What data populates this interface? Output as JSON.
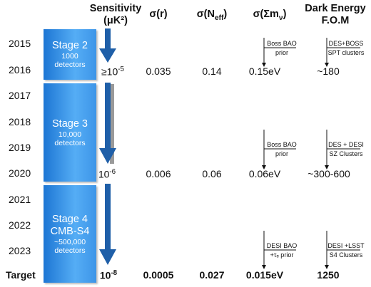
{
  "headers": {
    "sensitivity": "Sensitivity",
    "sensitivity_unit": "(μK²)",
    "sigma_r": "σ(r)",
    "sigma_neff": "σ(N",
    "sigma_neff_sub": "eff",
    "sigma_neff_close": ")",
    "sigma_mnu": "σ(Σm",
    "sigma_mnu_sub": "ν",
    "sigma_mnu_close": ")",
    "dark_energy": "Dark Energy",
    "fom": "F.O.M"
  },
  "years": [
    "2015",
    "2016",
    "2017",
    "2018",
    "2019",
    "2020",
    "2021",
    "2022",
    "2023",
    "Target"
  ],
  "stages": [
    {
      "name": "Stage 2",
      "detectors": "1000\ndetectors"
    },
    {
      "name": "Stage 3",
      "detectors": "10,000\ndetectors"
    },
    {
      "name": "Stage 4\nCMB-S4",
      "detectors": "~500,000\ndetectors"
    }
  ],
  "rows": [
    {
      "sensitivity": "≥10",
      "sensitivity_exp": "-5",
      "sigma_r": "0.035",
      "sigma_neff": "0.14",
      "sigma_mnu": "0.15eV",
      "fom": "~180"
    },
    {
      "sensitivity": "10",
      "sensitivity_exp": "-6",
      "sigma_r": "0.006",
      "sigma_neff": "0.06",
      "sigma_mnu": "0.06eV",
      "fom": "~300-600"
    },
    {
      "sensitivity": "10",
      "sensitivity_exp": "-8",
      "sigma_r": "0.0005",
      "sigma_neff": "0.027",
      "sigma_mnu": "0.015eV",
      "fom": "1250"
    }
  ],
  "priors": [
    {
      "mnu_top": "Boss BAO",
      "mnu_bottom": "prior",
      "fom_top": "DES+BOSS",
      "fom_bottom": "SPT clusters"
    },
    {
      "mnu_top": "Boss BAO",
      "mnu_bottom": "prior",
      "fom_top": "DES + DESI",
      "fom_bottom": "SZ Clusters"
    },
    {
      "mnu_top": "DESI BAO",
      "mnu_bottom": "+τₑ prior",
      "fom_top": "DESI +LSST",
      "fom_bottom": "S4 Clusters"
    }
  ],
  "colors": {
    "box_dark": "#1d76d4",
    "box_light": "#55adf5",
    "arrow": "#1f5fa8",
    "arrow_shadow": "#9a9a9a"
  }
}
